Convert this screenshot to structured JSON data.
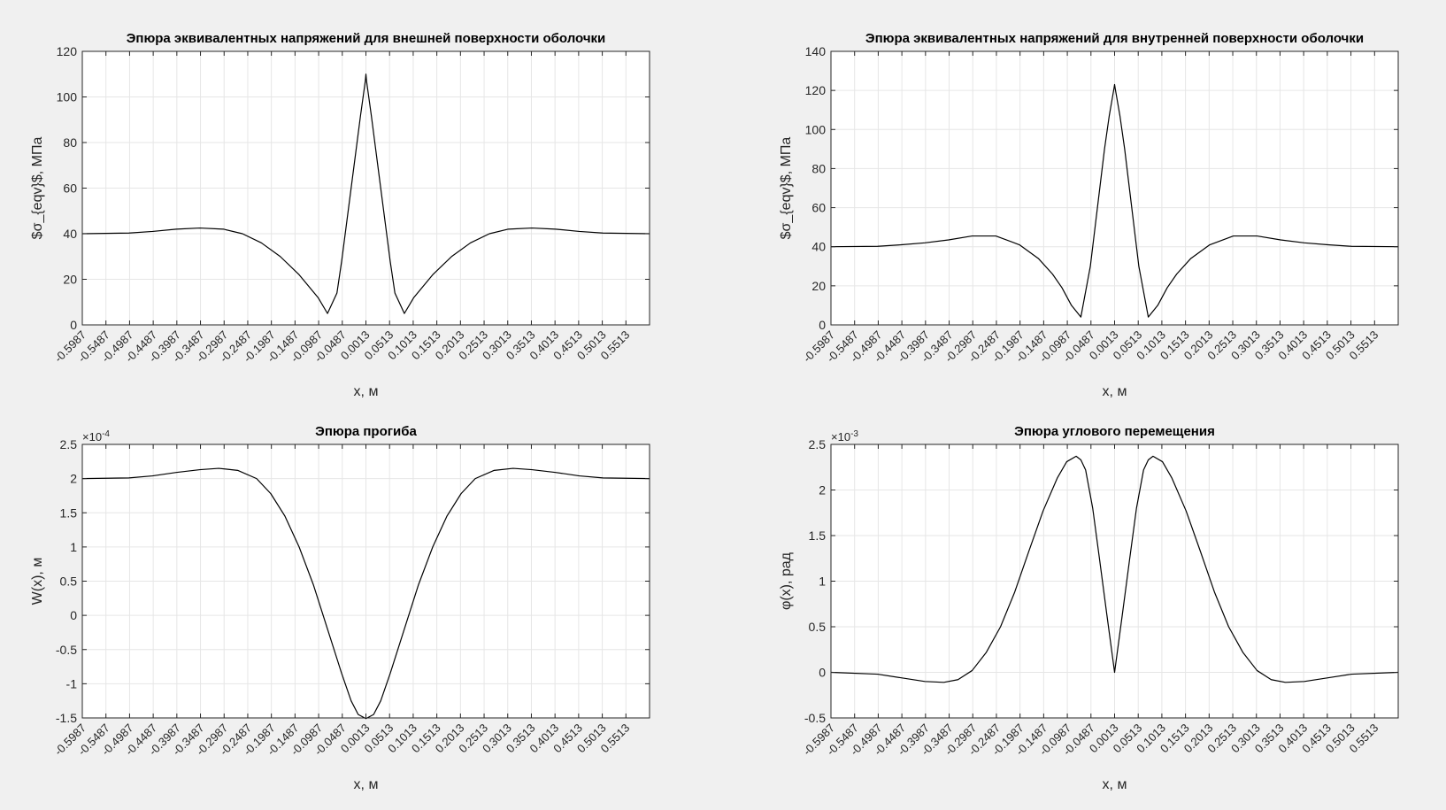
{
  "chart_data": [
    {
      "type": "line",
      "title": "Эпюра эквивалентных напряжений для внешней поверхности оболочки",
      "xlabel": "x, м",
      "ylabel": "$σ_{eqv}$, МПа",
      "xlim": [
        -0.5987,
        0.6013
      ],
      "ylim": [
        0,
        120
      ],
      "yticks": [
        0,
        20,
        40,
        60,
        80,
        100,
        120
      ],
      "ytick_labels": [
        "0",
        "20",
        "40",
        "60",
        "80",
        "100",
        "120"
      ],
      "yexponent": "",
      "xticks": [
        -0.5987,
        -0.5487,
        -0.4987,
        -0.4487,
        -0.3987,
        -0.3487,
        -0.2987,
        -0.2487,
        -0.1987,
        -0.1487,
        -0.0987,
        -0.0487,
        0.0013,
        0.0513,
        0.1013,
        0.1513,
        0.2013,
        0.2513,
        0.3013,
        0.3513,
        0.4013,
        0.4513,
        0.5013,
        0.5513
      ],
      "xtick_labels": [
        "-0.5987",
        "-0.5487",
        "-0.4987",
        "-0.4487",
        "-0.3987",
        "-0.3487",
        "-0.2987",
        "-0.2487",
        "-0.1987",
        "-0.1487",
        "-0.0987",
        "-0.0487",
        "0.0013",
        "0.0513",
        "0.1013",
        "0.1513",
        "0.2013",
        "0.2513",
        "0.3013",
        "0.3513",
        "0.4013",
        "0.4513",
        "0.5013",
        "0.5513"
      ],
      "grid": true,
      "line_color": "#000000",
      "series": [
        {
          "x": [
            -0.5987,
            -0.5,
            -0.45,
            -0.4,
            -0.35,
            -0.3,
            -0.26,
            -0.22,
            -0.18,
            -0.14,
            -0.12,
            -0.1,
            -0.08,
            -0.06,
            -0.05,
            -0.04,
            -0.03,
            -0.02,
            -0.01,
            0.0,
            0.0013,
            0.0026,
            0.0126,
            0.0226,
            0.0326,
            0.0426,
            0.0526,
            0.0626,
            0.0826,
            0.1026,
            0.1226,
            0.1426,
            0.1826,
            0.2226,
            0.2626,
            0.3026,
            0.3526,
            0.4026,
            0.4526,
            0.5026,
            0.6013
          ],
          "y": [
            40,
            40.3,
            41,
            42,
            42.5,
            42,
            40,
            36,
            30,
            22,
            17,
            12,
            5,
            14,
            28,
            44,
            60,
            76,
            92,
            107,
            110,
            107,
            92,
            76,
            60,
            44,
            28,
            14,
            5,
            12,
            17,
            22,
            30,
            36,
            40,
            42,
            42.5,
            42,
            41,
            40.3,
            40
          ]
        }
      ]
    },
    {
      "type": "line",
      "title": "Эпюра эквивалентных напряжений для внутренней поверхности оболочки",
      "xlabel": "x, м",
      "ylabel": "$σ_{eqv}$, МПа",
      "xlim": [
        -0.5987,
        0.6013
      ],
      "ylim": [
        0,
        140
      ],
      "yticks": [
        0,
        20,
        40,
        60,
        80,
        100,
        120,
        140
      ],
      "ytick_labels": [
        "0",
        "20",
        "40",
        "60",
        "80",
        "100",
        "120",
        "140"
      ],
      "yexponent": "",
      "xticks": [
        -0.5987,
        -0.5487,
        -0.4987,
        -0.4487,
        -0.3987,
        -0.3487,
        -0.2987,
        -0.2487,
        -0.1987,
        -0.1487,
        -0.0987,
        -0.0487,
        0.0013,
        0.0513,
        0.1013,
        0.1513,
        0.2013,
        0.2513,
        0.3013,
        0.3513,
        0.4013,
        0.4513,
        0.5013,
        0.5513
      ],
      "xtick_labels": [
        "-0.5987",
        "-0.5487",
        "-0.4987",
        "-0.4487",
        "-0.3987",
        "-0.3487",
        "-0.2987",
        "-0.2487",
        "-0.1987",
        "-0.1487",
        "-0.0987",
        "-0.0487",
        "0.0013",
        "0.0513",
        "0.1013",
        "0.1513",
        "0.2013",
        "0.2513",
        "0.3013",
        "0.3513",
        "0.4013",
        "0.4513",
        "0.5013",
        "0.5513"
      ],
      "grid": true,
      "line_color": "#000000",
      "series": [
        {
          "x": [
            -0.5987,
            -0.5,
            -0.45,
            -0.4,
            -0.35,
            -0.3,
            -0.25,
            -0.2,
            -0.16,
            -0.13,
            -0.11,
            -0.09,
            -0.07,
            -0.05,
            -0.04,
            -0.03,
            -0.02,
            -0.01,
            0.0,
            0.0013,
            0.0026,
            0.0126,
            0.0226,
            0.0326,
            0.0426,
            0.0526,
            0.0726,
            0.0926,
            0.1126,
            0.1326,
            0.1626,
            0.2026,
            0.2526,
            0.3026,
            0.3526,
            0.4026,
            0.4526,
            0.5026,
            0.6013
          ],
          "y": [
            40,
            40.2,
            41,
            42,
            43.5,
            45.5,
            45.5,
            41,
            34,
            26,
            19,
            10,
            4,
            30,
            50,
            70,
            90,
            107,
            121,
            123,
            121,
            107,
            90,
            70,
            50,
            30,
            4,
            10,
            19,
            26,
            34,
            41,
            45.5,
            45.5,
            43.5,
            42,
            41,
            40.2,
            40
          ]
        }
      ]
    },
    {
      "type": "line",
      "title": "Эпюра прогиба",
      "xlabel": "x, м",
      "ylabel": "W(x), м",
      "xlim": [
        -0.5987,
        0.6013
      ],
      "ylim": [
        -0.00015,
        0.00025
      ],
      "yticks": [
        -0.00015,
        -0.0001,
        -5e-05,
        0,
        5e-05,
        0.0001,
        0.00015,
        0.0002,
        0.00025
      ],
      "ytick_labels": [
        "-1.5",
        "-1",
        "-0.5",
        "0",
        "0.5",
        "1",
        "1.5",
        "2",
        "2.5"
      ],
      "yexponent": "×10",
      "yexponent_power": "-4",
      "xticks": [
        -0.5987,
        -0.5487,
        -0.4987,
        -0.4487,
        -0.3987,
        -0.3487,
        -0.2987,
        -0.2487,
        -0.1987,
        -0.1487,
        -0.0987,
        -0.0487,
        0.0013,
        0.0513,
        0.1013,
        0.1513,
        0.2013,
        0.2513,
        0.3013,
        0.3513,
        0.4013,
        0.4513,
        0.5013,
        0.5513
      ],
      "xtick_labels": [
        "-0.5987",
        "-0.5487",
        "-0.4987",
        "-0.4487",
        "-0.3987",
        "-0.3487",
        "-0.2987",
        "-0.2487",
        "-0.1987",
        "-0.1487",
        "-0.0987",
        "-0.0487",
        "0.0013",
        "0.0513",
        "0.1013",
        "0.1513",
        "0.2013",
        "0.2513",
        "0.3013",
        "0.3513",
        "0.4013",
        "0.4513",
        "0.5013",
        "0.5513"
      ],
      "grid": true,
      "line_color": "#000000",
      "series": [
        {
          "x": [
            -0.5987,
            -0.5,
            -0.45,
            -0.4,
            -0.35,
            -0.31,
            -0.27,
            -0.23,
            -0.2,
            -0.17,
            -0.14,
            -0.11,
            -0.08,
            -0.05,
            -0.03,
            -0.015,
            0.0013,
            0.0176,
            0.0326,
            0.0526,
            0.0826,
            0.1126,
            0.1426,
            0.1726,
            0.2026,
            0.2326,
            0.2726,
            0.3126,
            0.3526,
            0.4026,
            0.4526,
            0.5026,
            0.6013
          ],
          "y": [
            0.0002,
            0.000201,
            0.000204,
            0.000209,
            0.000213,
            0.000215,
            0.000212,
            0.0002,
            0.000178,
            0.000145,
            0.0001,
            4.5e-05,
            -2e-05,
            -8.5e-05,
            -0.000125,
            -0.000145,
            -0.000151,
            -0.000145,
            -0.000125,
            -8.5e-05,
            -2e-05,
            4.5e-05,
            0.0001,
            0.000145,
            0.000178,
            0.0002,
            0.000212,
            0.000215,
            0.000213,
            0.000209,
            0.000204,
            0.000201,
            0.0002
          ]
        }
      ]
    },
    {
      "type": "line",
      "title": "Эпюра углового перемещения",
      "xlabel": "x, м",
      "ylabel": "φ(x), рад",
      "xlim": [
        -0.5987,
        0.6013
      ],
      "ylim": [
        -0.0005,
        0.0025
      ],
      "yticks": [
        -0.0005,
        0,
        0.0005,
        0.001,
        0.0015,
        0.002,
        0.0025
      ],
      "ytick_labels": [
        "-0.5",
        "0",
        "0.5",
        "1",
        "1.5",
        "2",
        "2.5"
      ],
      "yexponent": "×10",
      "yexponent_power": "-3",
      "xticks": [
        -0.5987,
        -0.5487,
        -0.4987,
        -0.4487,
        -0.3987,
        -0.3487,
        -0.2987,
        -0.2487,
        -0.1987,
        -0.1487,
        -0.0987,
        -0.0487,
        0.0013,
        0.0513,
        0.1013,
        0.1513,
        0.2013,
        0.2513,
        0.3013,
        0.3513,
        0.4013,
        0.4513,
        0.5013,
        0.5513
      ],
      "xtick_labels": [
        "-0.5987",
        "-0.5487",
        "-0.4987",
        "-0.4487",
        "-0.3987",
        "-0.3487",
        "-0.2987",
        "-0.2487",
        "-0.1987",
        "-0.1487",
        "-0.0987",
        "-0.0487",
        "0.0013",
        "0.0513",
        "0.1013",
        "0.1513",
        "0.2013",
        "0.2513",
        "0.3013",
        "0.3513",
        "0.4013",
        "0.4513",
        "0.5013",
        "0.5513"
      ],
      "grid": true,
      "line_color": "#000000",
      "series": [
        {
          "x": [
            -0.5987,
            -0.5,
            -0.45,
            -0.4,
            -0.36,
            -0.33,
            -0.3,
            -0.27,
            -0.24,
            -0.21,
            -0.18,
            -0.15,
            -0.12,
            -0.1,
            -0.08,
            -0.07,
            -0.06,
            -0.045,
            -0.03,
            -0.015,
            0.0,
            0.0013,
            0.0026,
            0.0176,
            0.0326,
            0.0476,
            0.0626,
            0.0726,
            0.0826,
            0.1026,
            0.1226,
            0.1526,
            0.1826,
            0.2126,
            0.2426,
            0.2726,
            0.3026,
            0.3326,
            0.3626,
            0.4026,
            0.4526,
            0.5026,
            0.6013
          ],
          "y": [
            0,
            -2e-05,
            -6e-05,
            -0.0001,
            -0.00011,
            -8e-05,
            2e-05,
            0.00022,
            0.0005,
            0.00088,
            0.00133,
            0.00177,
            0.00213,
            0.00231,
            0.00237,
            0.00233,
            0.00222,
            0.0018,
            0.00122,
            0.00063,
            5e-05,
            0,
            5e-05,
            0.00063,
            0.00122,
            0.0018,
            0.00222,
            0.00233,
            0.00237,
            0.00231,
            0.00213,
            0.00177,
            0.00133,
            0.00088,
            0.0005,
            0.00022,
            2e-05,
            -8e-05,
            -0.00011,
            -0.0001,
            -6e-05,
            -2e-05,
            0
          ]
        }
      ]
    }
  ]
}
